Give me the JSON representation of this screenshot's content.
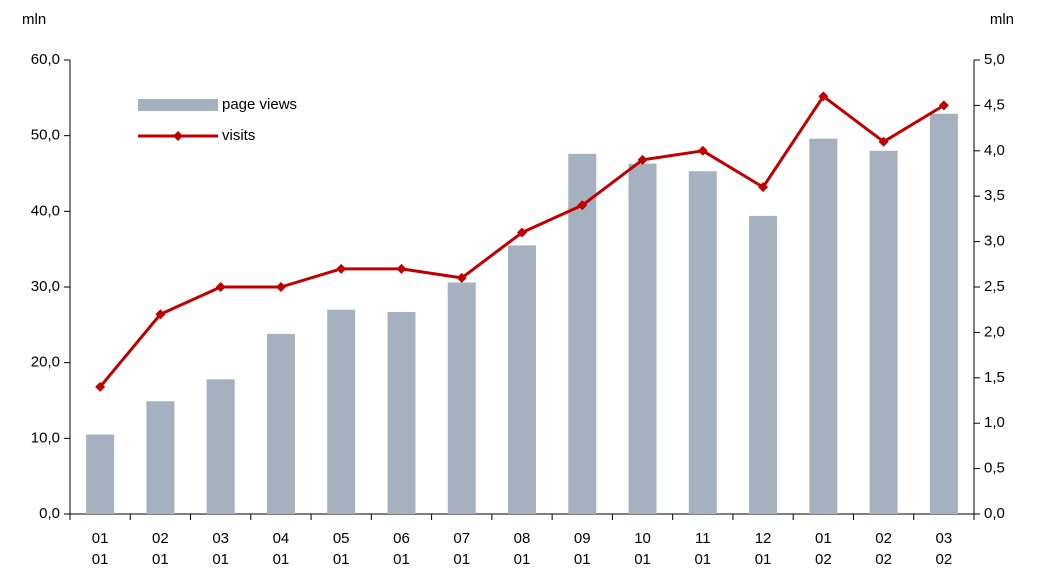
{
  "chart_data": {
    "type": "bar-line",
    "y_label": "mln",
    "y2_label": "mln",
    "categories": [
      [
        "01",
        "01"
      ],
      [
        "02",
        "01"
      ],
      [
        "03",
        "01"
      ],
      [
        "04",
        "01"
      ],
      [
        "05",
        "01"
      ],
      [
        "06",
        "01"
      ],
      [
        "07",
        "01"
      ],
      [
        "08",
        "01"
      ],
      [
        "09",
        "01"
      ],
      [
        "10",
        "01"
      ],
      [
        "11",
        "01"
      ],
      [
        "12",
        "01"
      ],
      [
        "01",
        "02"
      ],
      [
        "02",
        "02"
      ],
      [
        "03",
        "02"
      ]
    ],
    "series": [
      {
        "name": "page views",
        "type": "bar",
        "color": "#a5b1bf",
        "values": [
          10.5,
          14.9,
          17.8,
          23.8,
          27.0,
          26.7,
          30.6,
          35.5,
          47.6,
          46.3,
          45.3,
          39.4,
          49.6,
          48.0,
          52.9
        ]
      },
      {
        "name": "visits",
        "type": "line",
        "axis": "y2",
        "color": "#c00000",
        "values": [
          1.4,
          2.2,
          2.5,
          2.5,
          2.7,
          2.7,
          2.6,
          3.1,
          3.4,
          3.9,
          4.0,
          3.6,
          4.6,
          4.1,
          4.5
        ]
      }
    ],
    "ylim": [
      0,
      60
    ],
    "yticks": [
      {
        "value": 0,
        "label": "0,0"
      },
      {
        "value": 10,
        "label": "10,0"
      },
      {
        "value": 20,
        "label": "20,0"
      },
      {
        "value": 30,
        "label": "30,0"
      },
      {
        "value": 40,
        "label": "40,0"
      },
      {
        "value": 50,
        "label": "50,0"
      },
      {
        "value": 60,
        "label": "60,0"
      }
    ],
    "y2lim": [
      0,
      5
    ],
    "y2ticks": [
      {
        "value": 0,
        "label": "0,0"
      },
      {
        "value": 0.5,
        "label": "0,5"
      },
      {
        "value": 1,
        "label": "1,0"
      },
      {
        "value": 1.5,
        "label": "1,5"
      },
      {
        "value": 2,
        "label": "2,0"
      },
      {
        "value": 2.5,
        "label": "2,5"
      },
      {
        "value": 3,
        "label": "3,0"
      },
      {
        "value": 3.5,
        "label": "3,5"
      },
      {
        "value": 4,
        "label": "4,0"
      },
      {
        "value": 4.5,
        "label": "4,5"
      },
      {
        "value": 5,
        "label": "5,0"
      }
    ],
    "grid": false,
    "legend": "top-left"
  }
}
